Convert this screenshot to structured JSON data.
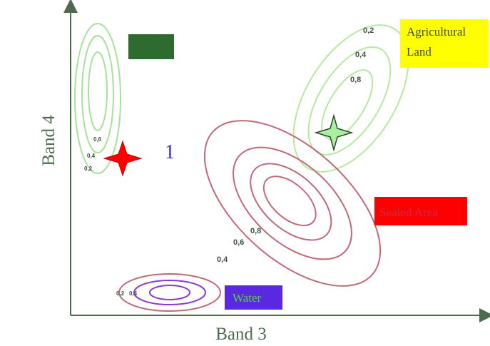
{
  "axes": {
    "x_label": "Band 3",
    "y_label": "Band 4"
  },
  "annotations": {
    "point_1_label": "1"
  },
  "classes": {
    "forest": {
      "label": "",
      "contours": [
        "0,2",
        "0,4",
        "0,6"
      ],
      "color": "#a8e29a",
      "box_color": "#2e6b2e"
    },
    "agricultural": {
      "label_line1": "Agricultural",
      "label_line2": "Land",
      "contours": [
        "0,2",
        "0,4",
        "0,8"
      ],
      "color": "#b8e8a0",
      "box_color": "#ffff00"
    },
    "sealed": {
      "label": "Sealed Area",
      "contours": [
        "0,8",
        "0,6",
        "0,4"
      ],
      "color": "#c06a78",
      "box_color": "#ff0000",
      "text_color": "#c0304a"
    },
    "water": {
      "label": "Water",
      "contours": [
        "0,2",
        "0,4"
      ],
      "color": "#c06a78",
      "inner_color": "#8a3ad0",
      "box_color": "#5a28e0",
      "text_color": "#5ad03a"
    }
  },
  "colors": {
    "axis": "#4f6a4f",
    "star_unknown": "#ff0000",
    "star_agri": "#a8f0a0",
    "label_1": "#3a2ac0"
  }
}
